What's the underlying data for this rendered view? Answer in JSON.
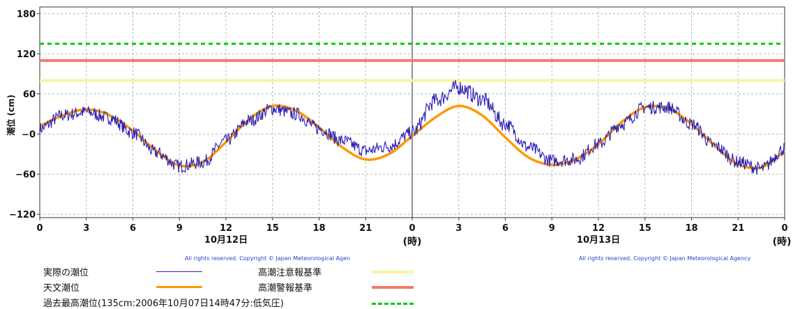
{
  "chart_data": {
    "type": "line",
    "ylabel": "潮位 (cm)",
    "ylim": [
      -125,
      190
    ],
    "yticks": [
      "180",
      "120",
      "60",
      "−0",
      "−60",
      "−120"
    ],
    "ytick_values": [
      180,
      120,
      60,
      0,
      -60,
      -120
    ],
    "xticks": [
      "0",
      "3",
      "6",
      "9",
      "12",
      "15",
      "18",
      "21",
      "0",
      "3",
      "6",
      "9",
      "12",
      "15",
      "18",
      "21",
      "0"
    ],
    "xtick_hours": [
      0,
      3,
      6,
      9,
      12,
      15,
      18,
      21,
      24,
      27,
      30,
      33,
      36,
      39,
      42,
      45,
      48
    ],
    "xlim_hours": [
      0,
      48
    ],
    "day_labels": [
      {
        "text": "10月12日",
        "hour": 12
      },
      {
        "text": "10月13日",
        "hour": 36
      }
    ],
    "hour_unit_label": "(時)",
    "copyright": "All rights reserved. Copyright © Japan Meteorological Agen",
    "copyright2": "All rights reserved. Copyright © Japan Meteorological Agency",
    "grid": true,
    "colors": {
      "observed": "#2b1fb3",
      "astronomical": "#ff9900",
      "warning": "#f47a6e",
      "advisory": "#f5f5a0",
      "record": "#00cc00"
    },
    "thresholds": [
      {
        "name": "高潮注意報基準",
        "value": 80
      },
      {
        "name": "高潮警報基準",
        "value": 110
      },
      {
        "name": "過去最高潮位(135cm:2006年10月07日14時47分:低気圧)",
        "value": 135
      }
    ],
    "series": [
      {
        "name": "天文潮位",
        "hours": [
          0,
          1.5,
          3,
          4.5,
          6,
          7.5,
          9,
          10.5,
          12,
          13.5,
          15,
          16.5,
          18,
          19.5,
          21,
          22.5,
          24,
          25.5,
          27,
          28.5,
          30,
          31.5,
          33,
          34.5,
          36,
          37.5,
          39,
          40.5,
          42,
          43.5,
          45,
          46.5,
          48
        ],
        "values": [
          12,
          28,
          37,
          28,
          5,
          -25,
          -47,
          -42,
          -12,
          22,
          42,
          35,
          10,
          -20,
          -38,
          -30,
          -3,
          25,
          42,
          28,
          -5,
          -35,
          -46,
          -38,
          -15,
          18,
          40,
          38,
          15,
          -18,
          -45,
          -50,
          -25
        ]
      },
      {
        "name": "実際の潮位",
        "hours": [
          0,
          1.5,
          3,
          4.5,
          6,
          7.5,
          9,
          10.5,
          12,
          13.5,
          15,
          16.5,
          18,
          19.5,
          21,
          22.5,
          24,
          25.5,
          27,
          28.5,
          30,
          31.5,
          33,
          34.5,
          36,
          37.5,
          39,
          40.5,
          42,
          43.5,
          45,
          46.5,
          48
        ],
        "values": [
          8,
          28,
          33,
          24,
          2,
          -28,
          -48,
          -42,
          -10,
          20,
          38,
          30,
          8,
          -10,
          -25,
          -18,
          2,
          50,
          70,
          52,
          15,
          -20,
          -40,
          -38,
          -15,
          15,
          40,
          40,
          15,
          -18,
          -42,
          -52,
          -22
        ]
      }
    ]
  },
  "legend": {
    "observed": "実際の潮位",
    "astronomical": "天文潮位",
    "record": "過去最高潮位(135cm:2006年10月07日14時47分:低気圧)",
    "advisory": "高潮注意報基準",
    "warning": "高潮警報基準"
  }
}
